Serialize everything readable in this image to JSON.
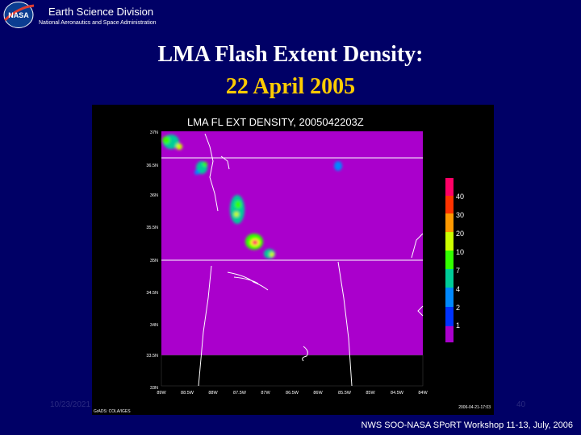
{
  "header": {
    "logo_text": "NASA",
    "org_title": "Earth Science Division",
    "org_subtitle": "National Aeronautics and Space Administration"
  },
  "slide": {
    "title_line1": "LMA Flash Extent Density:",
    "title_line2": "22 April 2005"
  },
  "plot": {
    "title": "LMA FL EXT DENSITY, 2005042203Z",
    "lat_labels": [
      "37N",
      "36.5N",
      "36N",
      "35.5N",
      "35N",
      "34.5N",
      "34N",
      "33.5N",
      "33N"
    ],
    "lon_labels": [
      "89W",
      "88.5W",
      "88W",
      "87.5W",
      "87W",
      "86.5W",
      "86W",
      "85.5W",
      "85W",
      "84.5W",
      "84W"
    ],
    "legend_labels": [
      "40",
      "30",
      "20",
      "10",
      "7",
      "4",
      "2",
      "1"
    ],
    "legend_colors": [
      "#ff0066",
      "#ff3300",
      "#ff9900",
      "#ccff00",
      "#33ff00",
      "#00cc99",
      "#0088ff",
      "#0033ff",
      "#aa00cc"
    ],
    "credit_left": "GrADS: COLA/IGES",
    "credit_right": "2006-04-21-17:03"
  },
  "footer": {
    "date": "10/23/2021",
    "page": "40",
    "workshop": "NWS SOO-NASA SPoRT Workshop 11-13, July, 2006"
  }
}
